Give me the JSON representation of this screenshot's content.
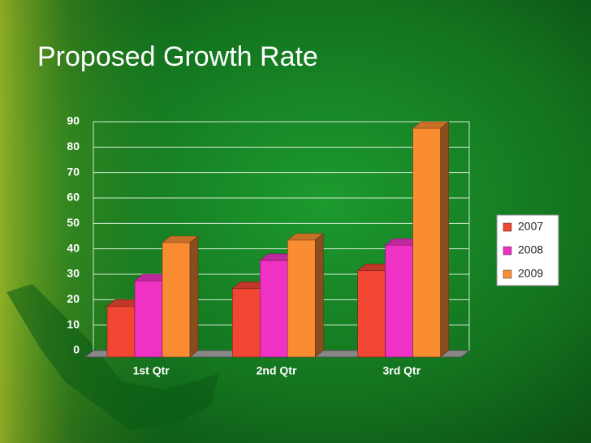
{
  "chart_data": {
    "type": "bar3d",
    "title": "Proposed Growth Rate",
    "categories": [
      "1st Qtr",
      "2nd Qtr",
      "3rd Qtr"
    ],
    "series": [
      {
        "name": "2007",
        "color": "#f04632",
        "values": [
          20,
          27,
          34
        ]
      },
      {
        "name": "2008",
        "color": "#f032c4",
        "values": [
          30,
          38,
          44
        ]
      },
      {
        "name": "2009",
        "color": "#fa8c32",
        "values": [
          45,
          46,
          90
        ]
      }
    ],
    "ylim": [
      0,
      90
    ],
    "yticks": [
      0,
      10,
      20,
      30,
      40,
      50,
      60,
      70,
      80,
      90
    ],
    "grid": true,
    "legend": "right"
  }
}
